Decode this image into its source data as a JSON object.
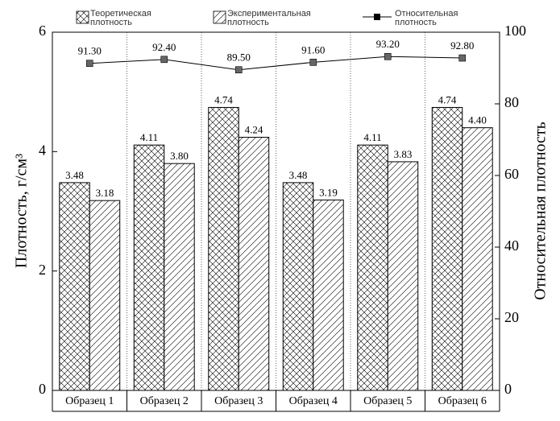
{
  "chart_data": {
    "type": "bar",
    "categories": [
      "Образец 1",
      "Образец 2",
      "Образец 3",
      "Образец 4",
      "Образец 5",
      "Образец 6"
    ],
    "series": [
      {
        "name": "Теоретическая плотность",
        "color": "#000000",
        "pattern": "crosshatch",
        "values": [
          3.48,
          4.11,
          4.74,
          3.48,
          4.11,
          4.74
        ],
        "value_labels": [
          "3.48",
          "4.11",
          "4.74",
          "3.48",
          "4.11",
          "4.74"
        ]
      },
      {
        "name": "Экспериментальная плотность",
        "color": "#000000",
        "pattern": "diagonal",
        "values": [
          3.18,
          3.8,
          4.24,
          3.19,
          3.83,
          4.4
        ],
        "value_labels": [
          "3.18",
          "3.80",
          "4.24",
          "3.19",
          "3.83",
          "4.40"
        ]
      },
      {
        "name": "Относительная плотность",
        "color": "#000000",
        "type": "line",
        "axis": "y2",
        "values": [
          91.3,
          92.4,
          89.5,
          91.6,
          93.2,
          92.8
        ],
        "value_labels": [
          "91.30",
          "92.40",
          "89.50",
          "91.60",
          "93.20",
          "92.80"
        ]
      }
    ],
    "ylabel": "Плотность, г/см³",
    "y2label": "Относительная плотность",
    "ylim": [
      0,
      6
    ],
    "yticks": [
      0,
      2,
      4,
      6
    ],
    "y2lim": [
      0,
      100
    ],
    "y2ticks": [
      0,
      20,
      40,
      60,
      80,
      100
    ]
  }
}
